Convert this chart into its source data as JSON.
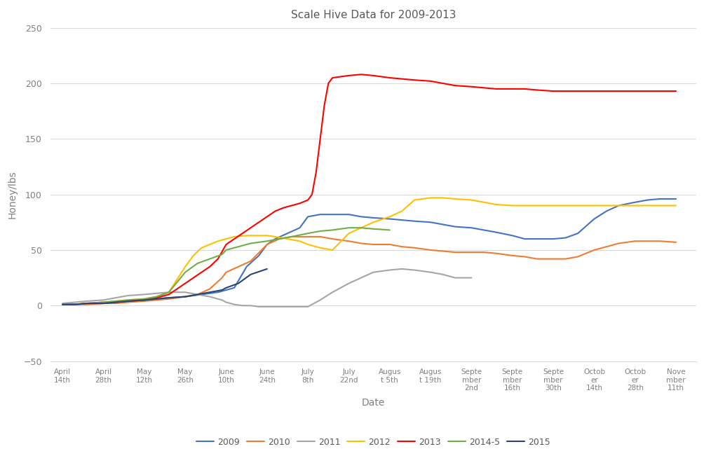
{
  "title": "Scale Hive Data for 2009-2013",
  "xlabel": "Date",
  "ylabel": "Honey/lbs",
  "ylim": [
    -50,
    250
  ],
  "yticks": [
    -50,
    0,
    50,
    100,
    150,
    200,
    250
  ],
  "background_color": "#ffffff",
  "grid_color": "#d9d9d9",
  "x_labels": [
    "April\n14th",
    "April\n28th",
    "May\n12th",
    "May\n26th",
    "June\n10th",
    "June\n24th",
    "July\n8th",
    "July\n22nd",
    "Augus\nt 5th",
    "Augus\nt 19th",
    "Septe\nmber\n2nd",
    "Septe\nmber\n16th",
    "Septe\nmber\n30th",
    "Octob\ner\n14th",
    "Octob\ner\n28th",
    "Nove\nmber\n11th"
  ],
  "series": {
    "2009": {
      "color": "#4472c4",
      "x": [
        0,
        0.3,
        0.6,
        1,
        1.3,
        1.6,
        2,
        2.3,
        2.6,
        3,
        3.2,
        3.4,
        3.6,
        3.8,
        4,
        4.2,
        4.5,
        4.8,
        5,
        5.2,
        5.5,
        5.8,
        6,
        6.3,
        6.6,
        7,
        7.3,
        7.6,
        8,
        8.3,
        8.6,
        9,
        9.3,
        9.6,
        10,
        10.3,
        10.6,
        11,
        11.3,
        11.6,
        12,
        12.3,
        12.6,
        13,
        13.3,
        13.6,
        14,
        14.3,
        14.6,
        15
      ],
      "y": [
        1,
        1,
        2,
        3,
        3,
        4,
        5,
        6,
        7,
        8,
        9,
        10,
        11,
        12,
        14,
        16,
        35,
        45,
        55,
        60,
        65,
        70,
        80,
        82,
        82,
        82,
        80,
        79,
        78,
        77,
        76,
        75,
        73,
        71,
        70,
        68,
        66,
        63,
        60,
        60,
        60,
        61,
        65,
        78,
        85,
        90,
        93,
        95,
        96,
        96
      ]
    },
    "2010": {
      "color": "#ed7d31",
      "x": [
        0,
        0.3,
        0.6,
        1,
        1.3,
        1.6,
        2,
        2.3,
        2.6,
        3,
        3.3,
        3.6,
        3.9,
        4,
        4.3,
        4.6,
        5,
        5.3,
        5.6,
        6,
        6.3,
        6.6,
        7,
        7.3,
        7.6,
        8,
        8.3,
        8.6,
        9,
        9.3,
        9.6,
        10,
        10.3,
        10.6,
        11,
        11.3,
        11.6,
        12,
        12.3,
        12.6,
        13,
        13.3,
        13.6,
        14,
        14.3,
        14.6,
        15
      ],
      "y": [
        1,
        1,
        1,
        2,
        2,
        3,
        4,
        5,
        6,
        8,
        10,
        15,
        25,
        30,
        35,
        40,
        55,
        60,
        62,
        62,
        62,
        60,
        58,
        56,
        55,
        55,
        53,
        52,
        50,
        49,
        48,
        48,
        48,
        47,
        45,
        44,
        42,
        42,
        42,
        44,
        50,
        53,
        56,
        58,
        58,
        58,
        57
      ]
    },
    "2011": {
      "color": "#a5a5a5",
      "x": [
        0,
        0.3,
        0.6,
        1,
        1.3,
        1.6,
        2,
        2.3,
        2.6,
        3,
        3.3,
        3.6,
        3.9,
        4,
        4.2,
        4.4,
        4.6,
        4.8,
        5,
        5.2,
        5.4,
        5.6,
        5.8,
        6,
        6.3,
        6.6,
        7,
        7.3,
        7.6,
        8,
        8.3,
        8.6,
        9,
        9.3,
        9.6,
        10
      ],
      "y": [
        2,
        3,
        4,
        5,
        7,
        9,
        10,
        11,
        12,
        12,
        10,
        8,
        5,
        3,
        1,
        0,
        0,
        -1,
        -1,
        -1,
        -1,
        -1,
        -1,
        -1,
        5,
        12,
        20,
        25,
        30,
        32,
        33,
        32,
        30,
        28,
        25,
        25
      ]
    },
    "2012": {
      "color": "#ffc000",
      "x": [
        0,
        0.3,
        0.6,
        1,
        1.3,
        1.6,
        2,
        2.3,
        2.6,
        3,
        3.2,
        3.4,
        3.6,
        3.8,
        4,
        4.2,
        4.5,
        4.8,
        5,
        5.2,
        5.5,
        5.8,
        6,
        6.3,
        6.6,
        7,
        7.3,
        7.6,
        8,
        8.3,
        8.6,
        9,
        9.3,
        9.6,
        10,
        10.3,
        10.6,
        11,
        11.3,
        11.6,
        12,
        12.3,
        12.6,
        13,
        13.3,
        13.6,
        14,
        14.3,
        14.6,
        15
      ],
      "y": [
        1,
        1,
        2,
        3,
        4,
        5,
        6,
        8,
        12,
        35,
        45,
        52,
        55,
        58,
        60,
        62,
        63,
        63,
        63,
        62,
        60,
        58,
        55,
        52,
        50,
        65,
        70,
        75,
        80,
        85,
        95,
        97,
        97,
        96,
        95,
        93,
        91,
        90,
        90,
        90,
        90,
        90,
        90,
        90,
        90,
        90,
        90,
        90,
        90,
        90
      ]
    },
    "2013": {
      "color": "#ff0000",
      "x": [
        0,
        0.3,
        0.6,
        1,
        1.3,
        1.6,
        2,
        2.3,
        2.6,
        3,
        3.2,
        3.4,
        3.6,
        3.8,
        4,
        4.2,
        4.4,
        4.6,
        4.8,
        5,
        5.2,
        5.4,
        5.6,
        5.8,
        6,
        6.1,
        6.2,
        6.3,
        6.4,
        6.5,
        6.6,
        7,
        7.3,
        7.6,
        8,
        8.3,
        8.6,
        9,
        9.3,
        9.6,
        10,
        10.3,
        10.6,
        11,
        11.3,
        11.6,
        12,
        12.3,
        12.6,
        13,
        13.3,
        13.6,
        14,
        14.3,
        14.6,
        15
      ],
      "y": [
        1,
        1,
        2,
        2,
        3,
        4,
        5,
        7,
        10,
        20,
        25,
        30,
        35,
        42,
        55,
        60,
        65,
        70,
        75,
        80,
        85,
        88,
        90,
        92,
        95,
        100,
        120,
        150,
        180,
        200,
        205,
        207,
        208,
        207,
        205,
        204,
        203,
        202,
        200,
        198,
        197,
        196,
        195,
        195,
        195,
        194,
        193,
        193,
        193,
        193,
        193,
        193,
        193,
        193,
        193,
        193
      ]
    },
    "2014-5": {
      "color": "#70ad47",
      "x": [
        0,
        0.3,
        0.6,
        1,
        1.3,
        1.6,
        2,
        2.3,
        2.6,
        3,
        3.3,
        3.6,
        3.9,
        4,
        4.3,
        4.6,
        5,
        5.3,
        5.6,
        6,
        6.3,
        6.6,
        7,
        7.3,
        7.6,
        8
      ],
      "y": [
        1,
        1,
        2,
        3,
        4,
        5,
        6,
        8,
        12,
        30,
        38,
        42,
        46,
        50,
        53,
        56,
        58,
        60,
        62,
        65,
        67,
        68,
        70,
        70,
        69,
        68
      ]
    },
    "2015": {
      "color": "#264478",
      "x": [
        0,
        0.3,
        0.6,
        1,
        1.3,
        1.6,
        2,
        2.3,
        2.6,
        3,
        3.3,
        3.6,
        3.9,
        4,
        4.3,
        4.6,
        5
      ],
      "y": [
        1,
        1,
        2,
        2,
        3,
        4,
        5,
        6,
        7,
        8,
        10,
        12,
        14,
        16,
        20,
        28,
        33
      ]
    }
  },
  "legend_order": [
    "2009",
    "2010",
    "2011",
    "2012",
    "2013",
    "2014-5",
    "2015"
  ]
}
